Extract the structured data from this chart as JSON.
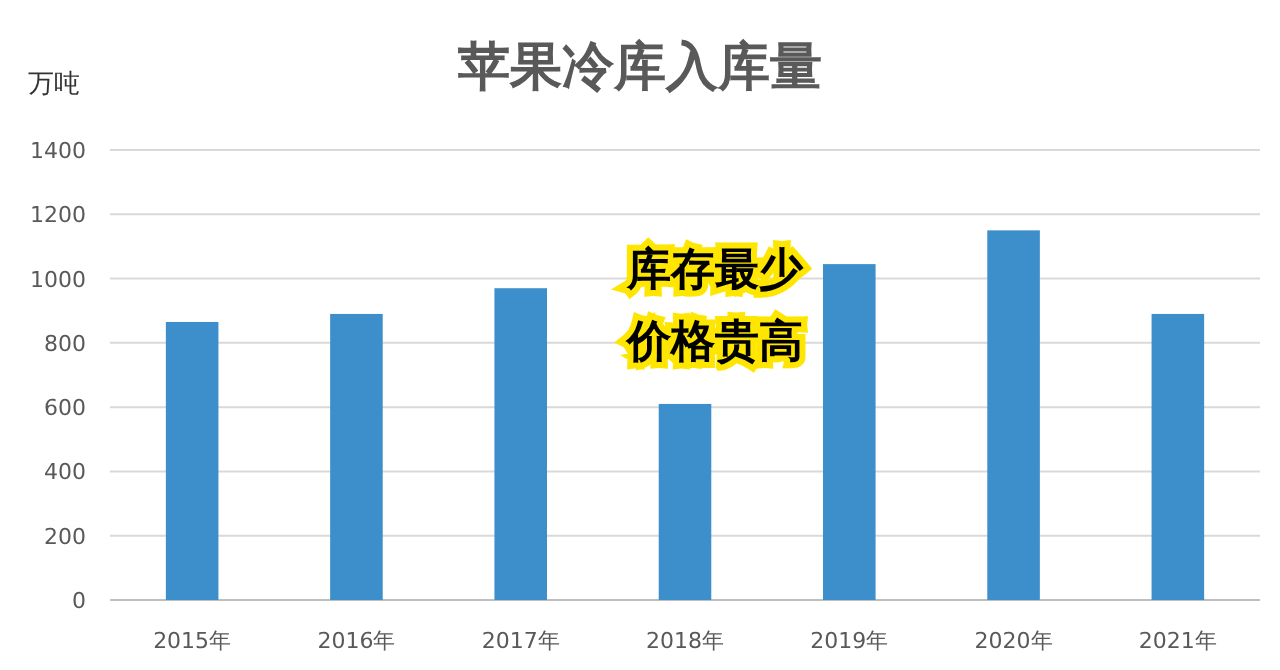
{
  "chart_data": {
    "type": "bar",
    "title": "苹果冷库入库量",
    "ylabel": "万吨",
    "categories": [
      "2015年",
      "2016年",
      "2017年",
      "2018年",
      "2019年",
      "2020年",
      "2021年"
    ],
    "values": [
      865,
      890,
      970,
      610,
      1045,
      1150,
      890
    ],
    "color": "#3d8fcc",
    "ylim": [
      0,
      1400
    ],
    "yticks": [
      0,
      200,
      400,
      600,
      800,
      1000,
      1200,
      1400
    ],
    "grid": "y",
    "annotations": [
      "库存最少",
      "价格贵高"
    ]
  }
}
